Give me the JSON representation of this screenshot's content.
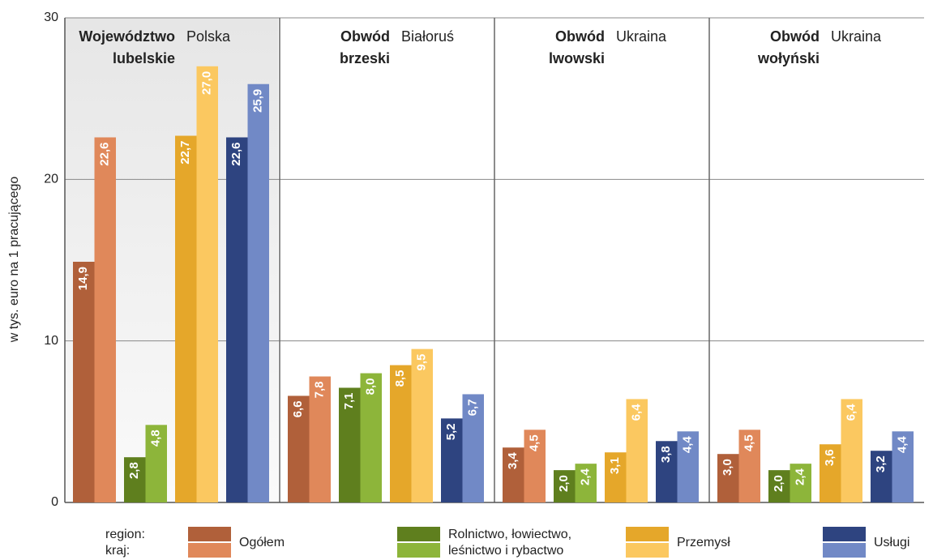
{
  "chart_data": {
    "type": "bar",
    "y_label": "w tys. euro na 1 pracującego",
    "categories": [
      [
        "Województwo",
        "lubelskie"
      ],
      [
        "Obwód",
        "brzeski"
      ],
      [
        "Obwód",
        "lwowski"
      ],
      [
        "Obwód",
        "wołyński"
      ]
    ],
    "countries": [
      "Polska",
      "Białoruś",
      "Ukraina",
      "Ukraina"
    ],
    "legend_labels": [
      "region:",
      "kraj:"
    ],
    "series": [
      {
        "name": "Ogółem",
        "colors": [
          "#b0603a",
          "#e0885a"
        ],
        "values": [
          14.9,
          6.6,
          3.4,
          3.0
        ],
        "value_labels": [
          "14,9",
          "6,6",
          "3,4",
          "3,0"
        ],
        "country_values": [
          22.6,
          7.8,
          4.5,
          4.5
        ],
        "country_value_labels": [
          "22,6",
          "7,8",
          "4,5",
          "4,5"
        ]
      },
      {
        "name": [
          "Rolnictwo, łowiectwo,",
          "leśnictwo i rybactwo"
        ],
        "colors": [
          "#5f7f1e",
          "#8db53a"
        ],
        "values": [
          2.8,
          7.1,
          2.0,
          2.0
        ],
        "value_labels": [
          "2,8",
          "7,1",
          "2,0",
          "2,0"
        ],
        "country_values": [
          4.8,
          8.0,
          2.4,
          2.4
        ],
        "country_value_labels": [
          "4,8",
          "8,0",
          "2,4",
          "2,4"
        ]
      },
      {
        "name": "Przemysł",
        "colors": [
          "#e5a72a",
          "#fbc860"
        ],
        "values": [
          22.7,
          8.5,
          3.1,
          3.6
        ],
        "value_labels": [
          "22,7",
          "8,5",
          "3,1",
          "3,6"
        ],
        "country_values": [
          27.0,
          9.5,
          6.4,
          6.4
        ],
        "country_value_labels": [
          "27,0",
          "9,5",
          "6,4",
          "6,4"
        ]
      },
      {
        "name": "Usługi",
        "colors": [
          "#2e4480",
          "#7189c6"
        ],
        "values": [
          22.6,
          5.2,
          3.8,
          3.2
        ],
        "value_labels": [
          "22,6",
          "5,2",
          "3,8",
          "3,2"
        ],
        "country_values": [
          25.9,
          6.7,
          4.4,
          4.4
        ],
        "country_value_labels": [
          "25,9",
          "6,7",
          "4,4",
          "4,4"
        ]
      }
    ],
    "ylim": [
      0,
      30
    ],
    "yticks": [
      0,
      10,
      20,
      30
    ],
    "grid": true
  }
}
